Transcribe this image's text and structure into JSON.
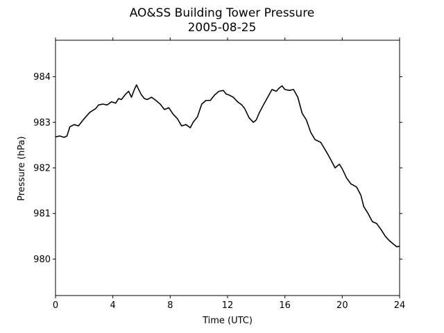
{
  "chart_data": {
    "type": "line",
    "title": "AO&SS Building Tower Pressure",
    "subtitle": "2005-08-25",
    "xlabel": "Time (UTC)",
    "ylabel": "Pressure (hPa)",
    "xlim": [
      0,
      24
    ],
    "ylim": [
      979.2,
      984.8
    ],
    "xticks": [
      0,
      4,
      8,
      12,
      16,
      20,
      24
    ],
    "yticks": [
      980,
      981,
      982,
      983,
      984
    ],
    "grid": false,
    "series_color": "#000000",
    "series": [
      {
        "x": [
          0,
          0.3,
          0.6,
          0.8,
          1.0,
          1.3,
          1.6,
          2.0,
          2.4,
          2.8,
          3.0,
          3.3,
          3.6,
          3.9,
          4.2,
          4.4,
          4.6,
          4.9,
          5.1,
          5.3,
          5.5,
          5.65,
          5.8,
          6.0,
          6.2,
          6.4,
          6.7,
          7.0,
          7.3,
          7.6,
          7.9,
          8.2,
          8.5,
          8.8,
          9.1,
          9.4,
          9.6,
          9.9,
          10.2,
          10.5,
          10.8,
          11.1,
          11.4,
          11.7,
          11.9,
          12.1,
          12.4,
          12.7,
          13.0,
          13.2,
          13.5,
          13.8,
          14.0,
          14.2,
          14.5,
          14.8,
          15.1,
          15.4,
          15.6,
          15.8,
          16.0,
          16.3,
          16.6,
          16.9,
          17.2,
          17.5,
          17.8,
          18.1,
          18.5,
          18.9,
          19.2,
          19.5,
          19.8,
          20.0,
          20.3,
          20.6,
          21.0,
          21.3,
          21.5,
          21.8,
          22.1,
          22.4,
          22.7,
          23.0,
          23.3,
          23.6,
          23.8,
          24.0
        ],
        "values": [
          982.68,
          982.7,
          982.67,
          982.7,
          982.9,
          982.95,
          982.92,
          983.08,
          983.22,
          983.3,
          983.38,
          983.4,
          983.38,
          983.45,
          983.42,
          983.52,
          983.5,
          983.62,
          983.68,
          983.55,
          983.72,
          983.82,
          983.72,
          983.6,
          983.52,
          983.5,
          983.55,
          983.48,
          983.4,
          983.28,
          983.32,
          983.18,
          983.08,
          982.92,
          982.95,
          982.88,
          983.0,
          983.12,
          983.4,
          983.48,
          983.48,
          983.6,
          983.68,
          983.7,
          983.62,
          983.6,
          983.55,
          983.45,
          983.38,
          983.3,
          983.1,
          983.0,
          983.05,
          983.2,
          983.38,
          983.55,
          983.72,
          983.68,
          983.75,
          983.8,
          983.72,
          983.7,
          983.72,
          983.55,
          983.2,
          983.05,
          982.78,
          982.62,
          982.56,
          982.35,
          982.18,
          982.0,
          982.08,
          981.98,
          981.78,
          981.65,
          981.58,
          981.4,
          981.15,
          981.0,
          980.82,
          980.78,
          980.65,
          980.5,
          980.4,
          980.32,
          980.27,
          980.28
        ]
      }
    ]
  }
}
